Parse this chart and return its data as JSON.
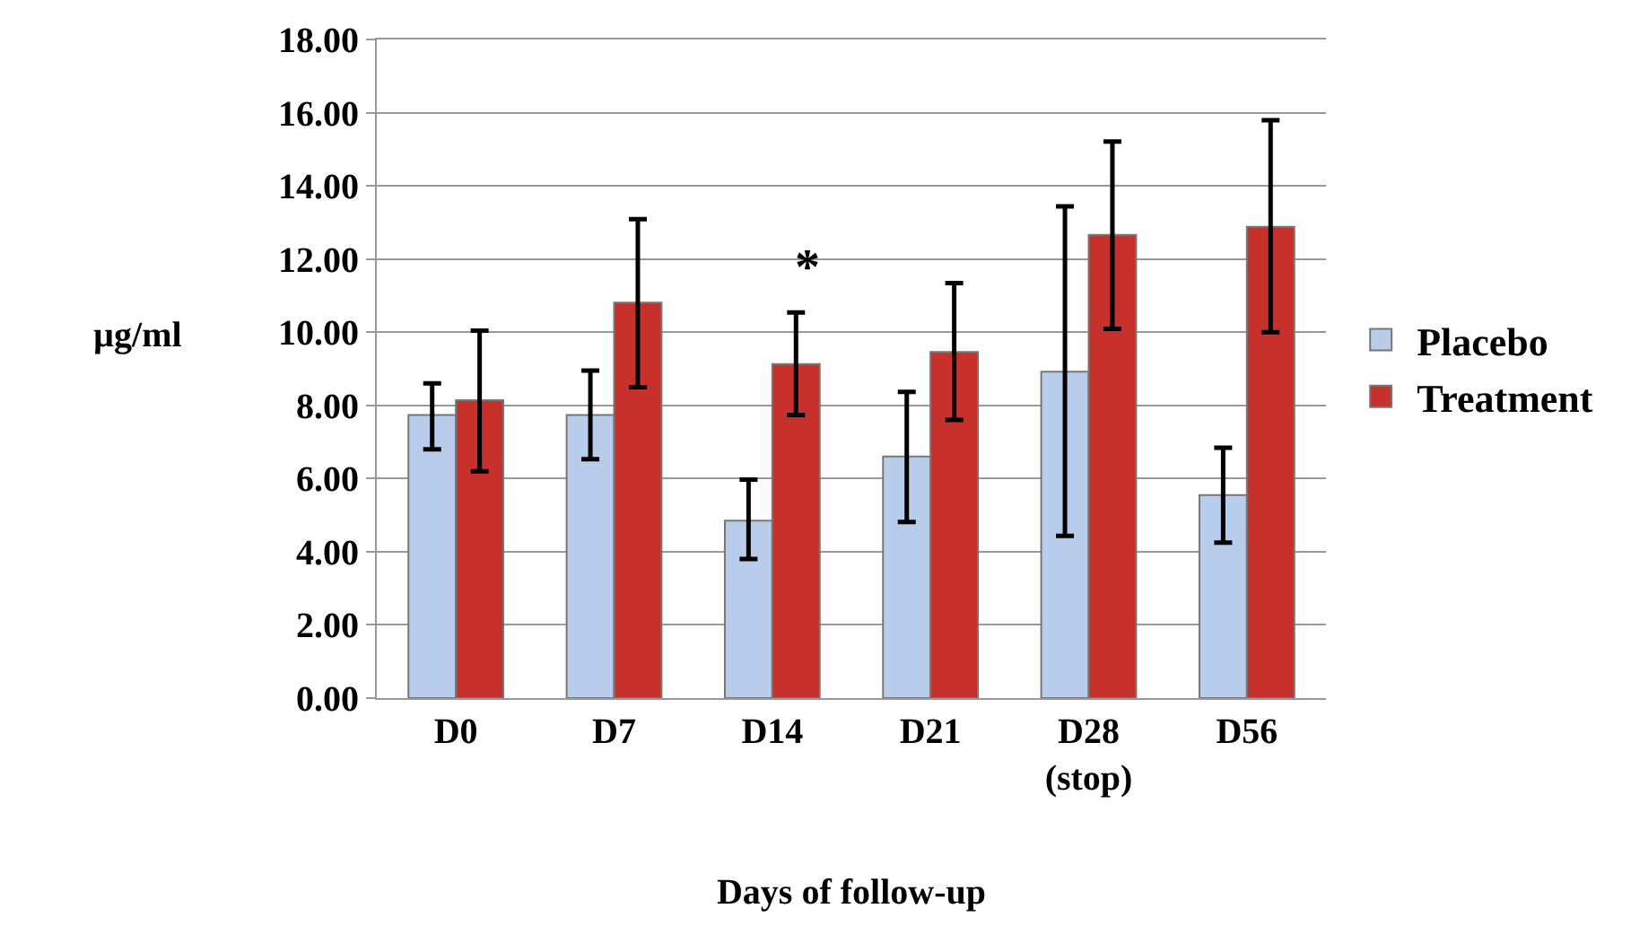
{
  "chart_data": {
    "type": "bar",
    "xlabel": "Days of follow-up",
    "ylabel": "µg/ml",
    "categories": [
      "D0",
      "D7",
      "D14",
      "D21",
      "D28\n(stop)",
      "D56"
    ],
    "series": [
      {
        "name": "Placebo",
        "color": "#b8cceb",
        "values": [
          7.74,
          7.74,
          4.85,
          6.6,
          8.92,
          5.55
        ],
        "errors": [
          [
            6.8,
            8.6
          ],
          [
            6.53,
            8.95
          ],
          [
            3.8,
            5.97
          ],
          [
            4.81,
            8.37
          ],
          [
            4.43,
            13.44
          ],
          [
            4.25,
            6.84
          ]
        ]
      },
      {
        "name": "Treatment",
        "color": "#c8302c",
        "values": [
          8.14,
          10.81,
          9.13,
          9.46,
          12.66,
          12.88
        ],
        "errors": [
          [
            6.2,
            10.04
          ],
          [
            8.5,
            13.09
          ],
          [
            7.74,
            10.54
          ],
          [
            7.6,
            11.34
          ],
          [
            10.09,
            15.21
          ],
          [
            10.0,
            15.79
          ]
        ]
      }
    ],
    "annotations": [
      "*"
    ],
    "ylim": [
      0,
      18
    ],
    "yticks": [
      {
        "value": 0,
        "label": "0.00"
      },
      {
        "value": 2,
        "label": "2.00"
      },
      {
        "value": 4,
        "label": "4.00"
      },
      {
        "value": 6,
        "label": "6.00"
      },
      {
        "value": 8,
        "label": "8.00"
      },
      {
        "value": 10,
        "label": "10.00"
      },
      {
        "value": 12,
        "label": "12.00"
      },
      {
        "value": 14,
        "label": "14.00"
      },
      {
        "value": 16,
        "label": "16.00"
      },
      {
        "value": 18,
        "label": "18.00"
      }
    ],
    "grid": "y",
    "legend": "right"
  }
}
